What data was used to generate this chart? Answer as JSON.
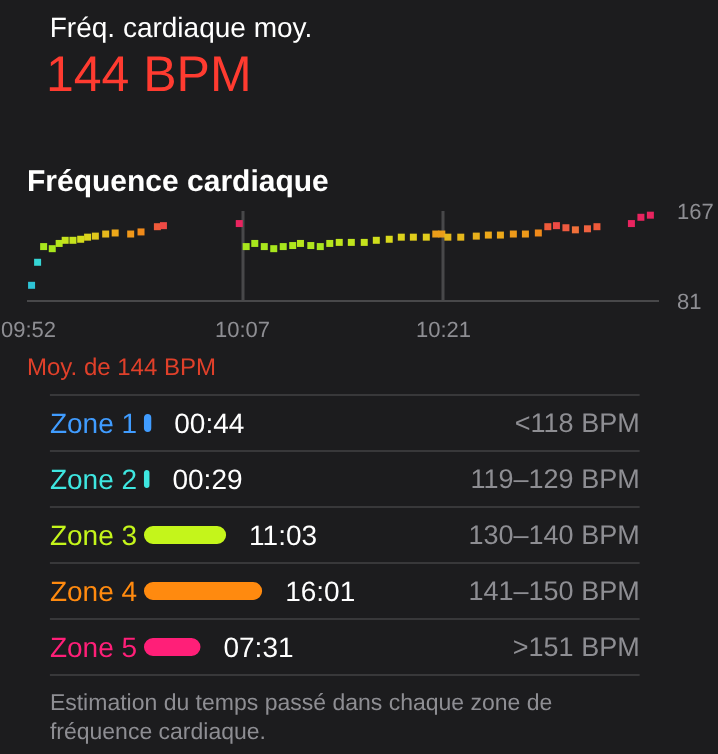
{
  "chart_data": [
    {
      "type": "other",
      "title": "Fréq. cardiaque moy.",
      "annotations": [
        "144 BPM"
      ]
    },
    {
      "type": "scatter",
      "title": "Fréquence cardiaque",
      "marker": "square",
      "grid": "x",
      "x": [
        9.872,
        9.879,
        9.886,
        9.896,
        9.904,
        9.911,
        9.92,
        9.929,
        9.937,
        9.946,
        9.958,
        9.969,
        9.987,
        9.999,
        10.018,
        10.025,
        10.113,
        10.121,
        10.131,
        10.142,
        10.153,
        10.164,
        10.175,
        10.184,
        10.196,
        10.207,
        10.218,
        10.229,
        10.243,
        10.258,
        10.272,
        10.287,
        10.301,
        10.315,
        10.33,
        10.341,
        10.348,
        10.355,
        10.37,
        10.388,
        10.402,
        10.416,
        10.431,
        10.445,
        10.46,
        10.471,
        10.481,
        10.492,
        10.503,
        10.517,
        10.528,
        10.568,
        10.579,
        10.59
      ],
      "values": [
        96,
        118,
        133,
        131,
        136,
        139,
        139,
        140,
        142,
        143,
        145,
        146,
        145,
        147,
        152,
        153,
        155,
        133,
        136,
        133,
        131,
        133,
        134,
        136,
        134,
        133,
        136,
        137,
        137,
        137,
        139,
        140,
        142,
        142,
        142,
        145,
        145,
        142,
        142,
        143,
        144,
        144,
        145,
        145,
        146,
        152,
        153,
        151,
        149,
        150,
        152,
        155,
        161,
        163
      ],
      "colors": [
        "#2ec4d6",
        "#35d5d5",
        "#a8e61d",
        "#a8e61d",
        "#b5e61d",
        "#c6e31d",
        "#c6e31d",
        "#d4dc1c",
        "#dcd51c",
        "#e0c81c",
        "#e6b81c",
        "#eca81a",
        "#f0981a",
        "#f08a1a",
        "#ef5a3a",
        "#ee4a45",
        "#e8245f",
        "#a8e61d",
        "#a8e61d",
        "#a8e61d",
        "#a8e61d",
        "#a8e61d",
        "#b0e61d",
        "#b8e41d",
        "#b0e61d",
        "#a8e61d",
        "#b5e61d",
        "#c0e41d",
        "#c0e41d",
        "#c6e31d",
        "#d0de1c",
        "#d8d81c",
        "#dcd21c",
        "#e0cc1c",
        "#e0cc1c",
        "#ec9e1a",
        "#ec9e1a",
        "#e6b81c",
        "#e6b81c",
        "#e8b01c",
        "#eca81a",
        "#eca81a",
        "#ee9a1a",
        "#ee9a1a",
        "#f08a1a",
        "#ef5a3a",
        "#ee4a45",
        "#ee5a40",
        "#f0703a",
        "#ef6240",
        "#ef5a3a",
        "#e8245f",
        "#e8245f",
        "#e8245f"
      ],
      "xlim": [
        9.8667,
        10.6
      ],
      "xticks": [
        {
          "value": 9.8667,
          "label": "09:52"
        },
        {
          "value": 10.1167,
          "label": "10:07"
        },
        {
          "value": 10.35,
          "label": "10:21"
        }
      ],
      "ylim": [
        81,
        167
      ],
      "yticks": [
        81,
        167
      ],
      "annotations": [
        "Moy. de 144 BPM"
      ]
    },
    {
      "type": "bar",
      "orientation": "horizontal",
      "categories": [
        "Zone 1",
        "Zone 2",
        "Zone 3",
        "Zone 4",
        "Zone 5"
      ],
      "values": [
        0.733,
        0.483,
        11.05,
        16.017,
        7.517
      ],
      "colors": [
        "#409cff",
        "#3ee6e0",
        "#c4f51b",
        "#ff8a0f",
        "#ff1f78"
      ],
      "value_labels": [
        "00:44",
        "00:29",
        "11:03",
        "16:01",
        "07:31"
      ],
      "annotations": [
        "<118 BPM",
        "119–129 BPM",
        "130–140 BPM",
        "141–150 BPM",
        ">151 BPM",
        "Estimation du temps passé dans chaque zone de fréquence cardiaque."
      ]
    }
  ]
}
